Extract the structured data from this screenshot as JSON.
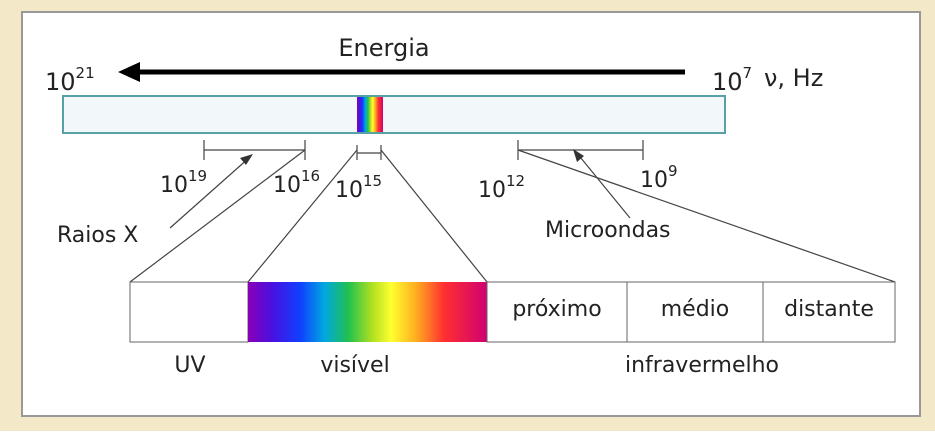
{
  "title": "Energia",
  "axis": {
    "left": {
      "base": "10",
      "exp": "21"
    },
    "right": {
      "base": "10",
      "exp": "7"
    },
    "unit": "ν, Hz"
  },
  "ticks": [
    {
      "base": "10",
      "exp": "19"
    },
    {
      "base": "10",
      "exp": "16"
    },
    {
      "base": "10",
      "exp": "15"
    },
    {
      "base": "10",
      "exp": "12"
    },
    {
      "base": "10",
      "exp": "9"
    }
  ],
  "labels": {
    "xray": "Raios X",
    "microwave": "Microondas"
  },
  "infrared": [
    "próximo",
    "médio",
    "distante"
  ],
  "captions": [
    "UV",
    "visível",
    "infravermelho"
  ]
}
